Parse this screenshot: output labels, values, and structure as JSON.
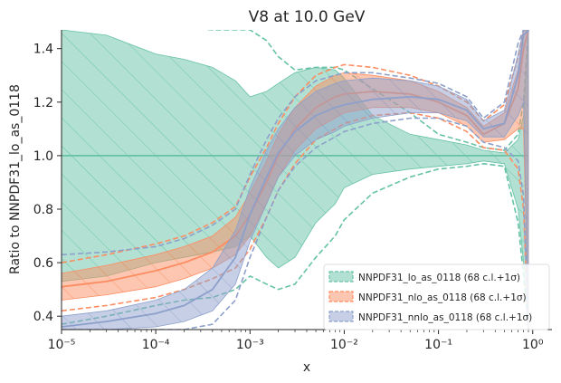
{
  "chart_data": {
    "type": "line",
    "title": "V8 at 10.0 GeV",
    "xlabel": "x",
    "ylabel": "Ratio to NNPDF31_lo_as_0118",
    "xscale": "log",
    "xlim": [
      1e-05,
      1.6
    ],
    "ylim": [
      0.35,
      1.47
    ],
    "grid": false,
    "legend_position": "bottom-right",
    "x_ticks": [
      {
        "value": 1e-05,
        "label": "10⁻⁵"
      },
      {
        "value": 0.0001,
        "label": "10⁻⁴"
      },
      {
        "value": 0.001,
        "label": "10⁻³"
      },
      {
        "value": 0.01,
        "label": "10⁻²"
      },
      {
        "value": 0.1,
        "label": "10⁻¹"
      },
      {
        "value": 1,
        "label": "10⁰"
      }
    ],
    "y_ticks": [
      {
        "value": 0.4,
        "label": "0.4"
      },
      {
        "value": 0.6,
        "label": "0.6"
      },
      {
        "value": 0.8,
        "label": "0.8"
      },
      {
        "value": 1.0,
        "label": "1.0"
      },
      {
        "value": 1.2,
        "label": "1.2"
      },
      {
        "value": 1.4,
        "label": "1.4"
      }
    ],
    "series": [
      {
        "name": "NNPDF31_lo_as_0118 (68 c.l.+1σ)",
        "color": "#66c2a5",
        "x": [
          1e-05,
          3e-05,
          0.0001,
          0.0002,
          0.0004,
          0.0007,
          0.001,
          0.0015,
          0.002,
          0.003,
          0.005,
          0.008,
          0.01,
          0.02,
          0.05,
          0.1,
          0.2,
          0.3,
          0.5,
          0.7,
          0.8,
          0.9
        ],
        "central": [
          1.0,
          1.0,
          1.0,
          1.0,
          1.0,
          1.0,
          1.0,
          1.0,
          1.0,
          1.0,
          1.0,
          1.0,
          1.0,
          1.0,
          1.0,
          1.0,
          1.0,
          1.0,
          1.0,
          1.0,
          1.0,
          1.0
        ],
        "upper": [
          1.47,
          1.45,
          1.38,
          1.36,
          1.33,
          1.28,
          1.22,
          1.24,
          1.27,
          1.31,
          1.33,
          1.32,
          1.29,
          1.15,
          1.08,
          1.06,
          1.04,
          1.02,
          1.01,
          1.06,
          1.15,
          1.47
        ],
        "lower": [
          0.53,
          0.55,
          0.6,
          0.62,
          0.64,
          0.66,
          0.7,
          0.62,
          0.58,
          0.62,
          0.75,
          0.82,
          0.88,
          0.93,
          0.95,
          0.96,
          0.97,
          0.98,
          0.97,
          0.8,
          0.6,
          0.35
        ],
        "dashed_upper": [
          1.47,
          1.49,
          1.49,
          1.48,
          1.47,
          1.47,
          1.47,
          1.43,
          1.37,
          1.32,
          1.33,
          1.33,
          1.32,
          1.25,
          1.16,
          1.08,
          1.05,
          1.03,
          1.02,
          1.08,
          1.2,
          1.47
        ],
        "dashed_lower": [
          0.37,
          0.4,
          0.44,
          0.46,
          0.47,
          0.5,
          0.55,
          0.52,
          0.5,
          0.52,
          0.62,
          0.7,
          0.76,
          0.86,
          0.92,
          0.95,
          0.96,
          0.97,
          0.96,
          0.75,
          0.55,
          0.35
        ]
      },
      {
        "name": "NNPDF31_nlo_as_0118 (68 c.l.+1σ)",
        "color": "#fc8d62",
        "x": [
          1e-05,
          3e-05,
          0.0001,
          0.0002,
          0.0004,
          0.0007,
          0.001,
          0.0015,
          0.002,
          0.003,
          0.005,
          0.008,
          0.01,
          0.02,
          0.05,
          0.1,
          0.2,
          0.3,
          0.5,
          0.7,
          0.8,
          0.9
        ],
        "central": [
          0.51,
          0.53,
          0.57,
          0.6,
          0.64,
          0.7,
          0.78,
          0.9,
          1.0,
          1.1,
          1.18,
          1.22,
          1.23,
          1.24,
          1.23,
          1.2,
          1.15,
          1.08,
          1.12,
          1.25,
          1.4,
          1.47
        ],
        "upper": [
          0.56,
          0.59,
          0.63,
          0.66,
          0.7,
          0.77,
          0.86,
          0.98,
          1.08,
          1.18,
          1.26,
          1.3,
          1.31,
          1.3,
          1.28,
          1.24,
          1.18,
          1.11,
          1.16,
          1.32,
          1.47,
          1.47
        ],
        "lower": [
          0.46,
          0.48,
          0.51,
          0.54,
          0.58,
          0.63,
          0.7,
          0.82,
          0.92,
          1.02,
          1.1,
          1.14,
          1.16,
          1.18,
          1.18,
          1.16,
          1.11,
          1.05,
          1.06,
          1.1,
          1.1,
          0.35
        ],
        "dashed_upper": [
          0.6,
          0.63,
          0.67,
          0.7,
          0.75,
          0.81,
          0.92,
          1.03,
          1.12,
          1.22,
          1.3,
          1.33,
          1.34,
          1.33,
          1.3,
          1.26,
          1.2,
          1.13,
          1.19,
          1.37,
          1.47,
          1.47
        ],
        "dashed_lower": [
          0.42,
          0.44,
          0.47,
          0.5,
          0.54,
          0.58,
          0.65,
          0.77,
          0.87,
          0.97,
          1.06,
          1.1,
          1.12,
          1.15,
          1.16,
          1.14,
          1.09,
          1.03,
          1.02,
          0.95,
          0.8,
          0.35
        ]
      },
      {
        "name": "NNPDF31_nnlo_as_0118 (68 c.l.+1σ)",
        "color": "#8da0cb",
        "x": [
          1e-05,
          3e-05,
          0.0001,
          0.0002,
          0.0004,
          0.0007,
          0.001,
          0.0015,
          0.002,
          0.003,
          0.005,
          0.008,
          0.01,
          0.02,
          0.05,
          0.1,
          0.2,
          0.3,
          0.5,
          0.7,
          0.8,
          0.9
        ],
        "central": [
          0.36,
          0.38,
          0.41,
          0.44,
          0.5,
          0.62,
          0.78,
          0.92,
          1.01,
          1.09,
          1.15,
          1.18,
          1.19,
          1.21,
          1.22,
          1.21,
          1.17,
          1.1,
          1.12,
          1.3,
          1.45,
          1.47
        ],
        "upper": [
          0.4,
          0.42,
          0.46,
          0.5,
          0.58,
          0.72,
          0.88,
          1.02,
          1.1,
          1.18,
          1.24,
          1.27,
          1.28,
          1.29,
          1.28,
          1.26,
          1.21,
          1.13,
          1.17,
          1.38,
          1.47,
          1.47
        ],
        "lower": [
          0.35,
          0.35,
          0.36,
          0.38,
          0.42,
          0.52,
          0.68,
          0.82,
          0.92,
          1.0,
          1.06,
          1.09,
          1.11,
          1.14,
          1.16,
          1.16,
          1.13,
          1.07,
          1.07,
          1.15,
          1.2,
          0.35
        ],
        "dashed_upper": [
          0.63,
          0.64,
          0.66,
          0.69,
          0.74,
          0.8,
          0.93,
          1.06,
          1.14,
          1.22,
          1.28,
          1.3,
          1.31,
          1.31,
          1.29,
          1.27,
          1.22,
          1.14,
          1.2,
          1.42,
          1.47,
          1.47
        ],
        "dashed_lower": [
          0.35,
          0.35,
          0.35,
          0.35,
          0.37,
          0.46,
          0.62,
          0.77,
          0.87,
          0.96,
          1.03,
          1.07,
          1.09,
          1.12,
          1.14,
          1.14,
          1.11,
          1.05,
          1.03,
          0.98,
          0.85,
          0.35
        ]
      }
    ]
  }
}
